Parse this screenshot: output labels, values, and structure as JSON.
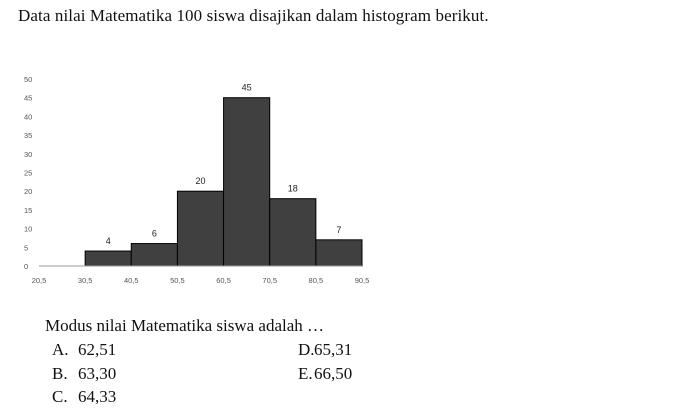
{
  "intro_text": "Data nilai Matematika 100 siswa disajikan dalam histogram berikut.",
  "chart_data": {
    "type": "bar",
    "subtype": "histogram",
    "title": "",
    "xlabel": "",
    "ylabel": "",
    "x_ticks": [
      "20,5",
      "30,5",
      "40,5",
      "50,5",
      "60,5",
      "70,5",
      "80,5",
      "90,5"
    ],
    "y_ticks": [
      "0",
      "5",
      "10",
      "15",
      "20",
      "25",
      "30",
      "35",
      "40",
      "45",
      "50"
    ],
    "bins": [
      {
        "from": 30.5,
        "to": 40.5,
        "value": 4,
        "label": "4"
      },
      {
        "from": 40.5,
        "to": 50.5,
        "value": 6,
        "label": "6"
      },
      {
        "from": 50.5,
        "to": 60.5,
        "value": 20,
        "label": "20"
      },
      {
        "from": 60.5,
        "to": 70.5,
        "value": 45,
        "label": "45"
      },
      {
        "from": 70.5,
        "to": 80.5,
        "value": 18,
        "label": "18"
      },
      {
        "from": 80.5,
        "to": 90.5,
        "value": 7,
        "label": "7"
      }
    ],
    "xlim": [
      20.5,
      90.5
    ],
    "ylim": [
      0,
      50
    ],
    "grid": false,
    "legend": "none",
    "bar_color": "#404040",
    "bar_edge_color": "#000000"
  },
  "question": "Modus nilai Matematika siswa adalah …",
  "options": {
    "a": {
      "letter": "A.",
      "value": "62,51"
    },
    "b": {
      "letter": "B.",
      "value": "63,30"
    },
    "c": {
      "letter": "C.",
      "value": "64,33"
    },
    "d": {
      "letter": "D.",
      "value": "65,31"
    },
    "e": {
      "letter": "E.",
      "value": "66,50"
    }
  }
}
